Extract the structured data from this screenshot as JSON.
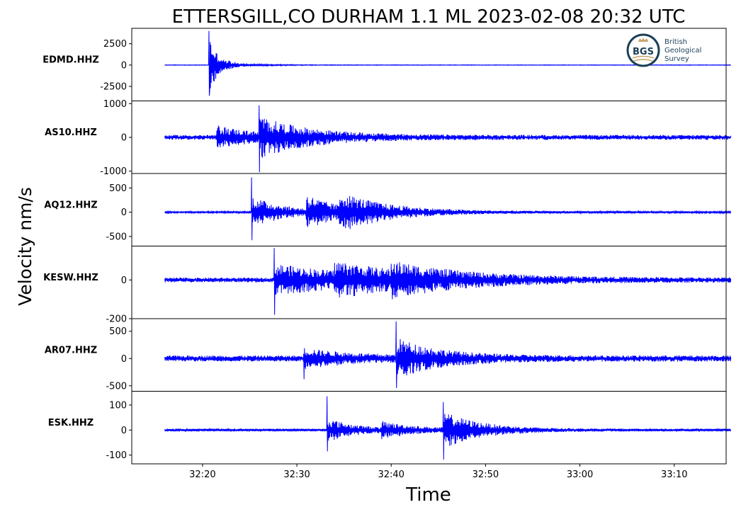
{
  "chart_data": {
    "type": "line",
    "title": "ETTERSGILL,CO DURHAM 1.1 ML   2023-02-08 20:32 UTC",
    "xlabel": "Time",
    "ylabel": "Velocity nm/s",
    "x_ticks": [
      "32:20",
      "32:30",
      "32:40",
      "32:50",
      "33:00",
      "33:10"
    ],
    "x_tick_seconds": [
      20,
      30,
      40,
      50,
      60,
      70
    ],
    "x_range_seconds": [
      12.5,
      75.5
    ],
    "trace_time_range_seconds": [
      16,
      76
    ],
    "grid": false,
    "line_color": "#0000ff",
    "logo": {
      "badge": "BGS",
      "lines": [
        "British",
        "Geological",
        "Survey"
      ],
      "color": "#1b3f55",
      "accent": "#c8a46a"
    },
    "panels": [
      {
        "station": "EDMD.HHZ",
        "ylim": [
          -4200,
          4300
        ],
        "yticks": [
          2500,
          0,
          -2500
        ],
        "ytick_labels": [
          "2500",
          "0",
          "-2500"
        ],
        "noise": 30,
        "events": [
          {
            "t": 20.7,
            "amp": 3500,
            "decay": 0.9,
            "spike_max": 4000,
            "spike_min": -3600
          },
          {
            "t": 22.5,
            "amp": 200,
            "decay": 3.5
          }
        ]
      },
      {
        "station": "AS10.HHZ",
        "ylim": [
          -1070,
          1080
        ],
        "yticks": [
          1000,
          0,
          -1000
        ],
        "ytick_labels": [
          "1000",
          "0",
          "-1000"
        ],
        "noise": 70,
        "events": [
          {
            "t": 21.5,
            "amp": 300,
            "decay": 4.0
          },
          {
            "t": 26.0,
            "amp": 480,
            "decay": 5.5,
            "spike_max": 950,
            "spike_min": -1030
          }
        ]
      },
      {
        "station": "AQ12.HHZ",
        "ylim": [
          -700,
          800
        ],
        "yticks": [
          500,
          0,
          -500
        ],
        "ytick_labels": [
          "500",
          "0",
          "-500"
        ],
        "noise": 18,
        "events": [
          {
            "t": 25.2,
            "amp": 320,
            "decay": 3.5,
            "spike_max": 720,
            "spike_min": -580
          },
          {
            "t": 31.0,
            "amp": 300,
            "decay": 3.5
          },
          {
            "t": 34.5,
            "amp": 290,
            "decay": 6.0
          }
        ]
      },
      {
        "station": "KESW.HHZ",
        "ylim": [
          -200,
          175
        ],
        "yticks": [
          0,
          -200
        ],
        "ytick_labels": [
          "0",
          "-200"
        ],
        "noise": 12,
        "events": [
          {
            "t": 27.6,
            "amp": 75,
            "decay": 9.0,
            "spike_max": 165,
            "spike_min": -180
          },
          {
            "t": 34.0,
            "amp": 55,
            "decay": 8.0
          },
          {
            "t": 40.0,
            "amp": 45,
            "decay": 8.0
          }
        ]
      },
      {
        "station": "AR07.HHZ",
        "ylim": [
          -600,
          730
        ],
        "yticks": [
          500,
          0,
          -500
        ],
        "ytick_labels": [
          "500",
          "0",
          "-500"
        ],
        "noise": 55,
        "events": [
          {
            "t": 30.7,
            "amp": 150,
            "decay": 5.0,
            "spike_min": -380
          },
          {
            "t": 40.5,
            "amp": 320,
            "decay": 4.5,
            "spike_max": 680,
            "spike_min": -540
          }
        ]
      },
      {
        "station": "ESK.HHZ",
        "ylim": [
          -135,
          155
        ],
        "yticks": [
          100,
          0,
          -100
        ],
        "ytick_labels": [
          "100",
          "0",
          "-100"
        ],
        "noise": 5,
        "events": [
          {
            "t": 33.2,
            "amp": 45,
            "decay": 3.0,
            "spike_max": 135,
            "spike_min": -85
          },
          {
            "t": 39.0,
            "amp": 25,
            "decay": 4.0
          },
          {
            "t": 45.5,
            "amp": 65,
            "decay": 4.0,
            "spike_max": 112,
            "spike_min": -118
          }
        ]
      }
    ]
  }
}
